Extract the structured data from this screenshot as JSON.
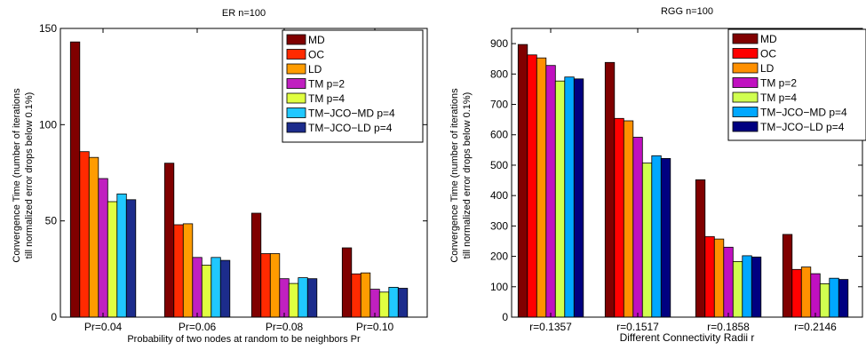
{
  "chart_data": [
    {
      "type": "bar",
      "title": "ER n=100",
      "xlabel": "Probability of two nodes at random to be neighbors Pr",
      "ylabel_lines": [
        "Convergence Time (number of iterations",
        "till normalized error drops below 0.1%)"
      ],
      "categories": [
        "Pr=0.04",
        "Pr=0.06",
        "Pr=0.08",
        "Pr=0.10"
      ],
      "ylim": [
        0,
        150
      ],
      "yticks": [
        "0",
        "50",
        "100",
        "150"
      ],
      "legend_position": "top-right",
      "series": [
        {
          "name": "MD",
          "color": "#800000",
          "values": [
            143,
            80,
            54,
            36
          ]
        },
        {
          "name": "OC",
          "color": "#ff2a00",
          "values": [
            86,
            48,
            33,
            22.5
          ]
        },
        {
          "name": "LD",
          "color": "#ff9c00",
          "values": [
            83,
            48.5,
            33,
            23
          ]
        },
        {
          "name": "TM p=2",
          "color": "#c020c0",
          "values": [
            72,
            31,
            20,
            14.5
          ]
        },
        {
          "name": "TM p=4",
          "color": "#e0ff40",
          "values": [
            60,
            27,
            17.5,
            13
          ]
        },
        {
          "name": "TM−JCO−MD p=4",
          "color": "#20c8ff",
          "values": [
            64,
            31,
            20.5,
            15.5
          ]
        },
        {
          "name": "TM−JCO−LD p=4",
          "color": "#1c2c8c",
          "values": [
            61,
            29.5,
            20,
            15
          ]
        }
      ]
    },
    {
      "type": "bar",
      "title": "RGG n=100",
      "xlabel": "Different Connectivity Radii r",
      "ylabel_lines": [
        "Convergence Time (number of iterations",
        "till normalized error drops below 0.1%)"
      ],
      "categories": [
        "r=0.1357",
        "r=0.1517",
        "r=0.1858",
        "r=0.2146"
      ],
      "ylim": [
        0,
        950
      ],
      "yticks": [
        "0",
        "100",
        "200",
        "300",
        "400",
        "500",
        "600",
        "700",
        "800",
        "900"
      ],
      "legend_position": "top-right",
      "series": [
        {
          "name": "MD",
          "color": "#800000",
          "values": [
            897,
            838,
            452,
            272
          ]
        },
        {
          "name": "OC",
          "color": "#ff0000",
          "values": [
            863,
            654,
            265,
            157
          ]
        },
        {
          "name": "LD",
          "color": "#ff9000",
          "values": [
            853,
            646,
            257,
            165
          ]
        },
        {
          "name": "TM p=2",
          "color": "#c010c0",
          "values": [
            828,
            592,
            230,
            143
          ]
        },
        {
          "name": "TM p=4",
          "color": "#d0ff50",
          "values": [
            777,
            507,
            183,
            110
          ]
        },
        {
          "name": "TM−JCO−MD p=4",
          "color": "#00a8ff",
          "values": [
            790,
            531,
            202,
            128
          ]
        },
        {
          "name": "TM−JCO−LD p=4",
          "color": "#000080",
          "values": [
            784,
            522,
            198,
            124
          ]
        }
      ]
    }
  ]
}
